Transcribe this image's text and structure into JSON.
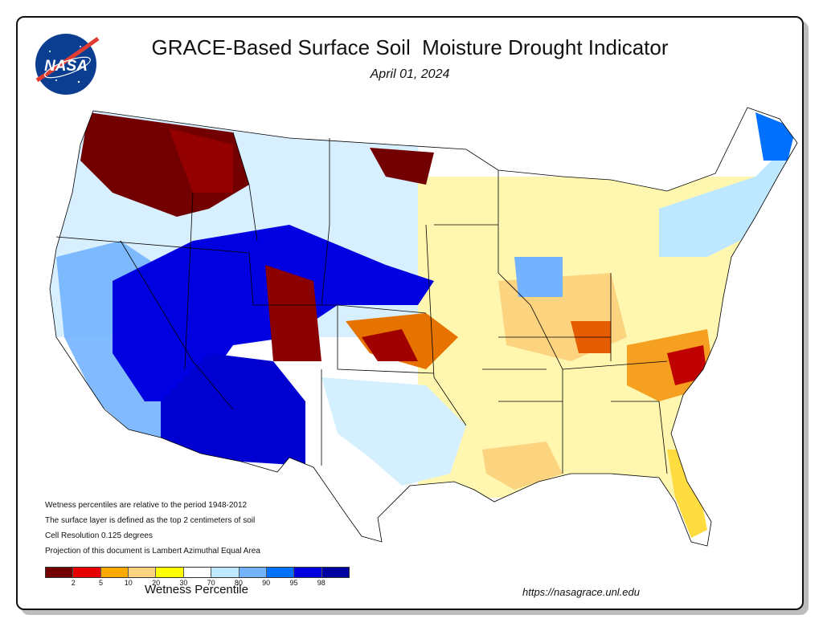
{
  "header": {
    "title": "GRACE-Based Surface Soil  Moisture Drought Indicator",
    "date": "April 01, 2024",
    "logo_text": "NASA"
  },
  "notes": [
    "Wetness percentiles are relative to the period 1948-2012",
    "The surface layer is defined as the top 2 centimeters of soil",
    "Cell Resolution 0.125 degrees",
    "Projection of this document is Lambert Azimuthal Equal Area"
  ],
  "legend": {
    "title": "Wetness Percentile",
    "ticks": [
      "2",
      "5",
      "10",
      "20",
      "30",
      "70",
      "80",
      "90",
      "95",
      "98"
    ],
    "colors": [
      "#730000",
      "#e60000",
      "#ffaa00",
      "#fcd37f",
      "#ffff00",
      "#ffffff",
      "#bee8ff",
      "#73b2ff",
      "#0070ff",
      "#0000e0",
      "#0000a0"
    ]
  },
  "footer": {
    "url": "https://nasagrace.unl.edu"
  }
}
